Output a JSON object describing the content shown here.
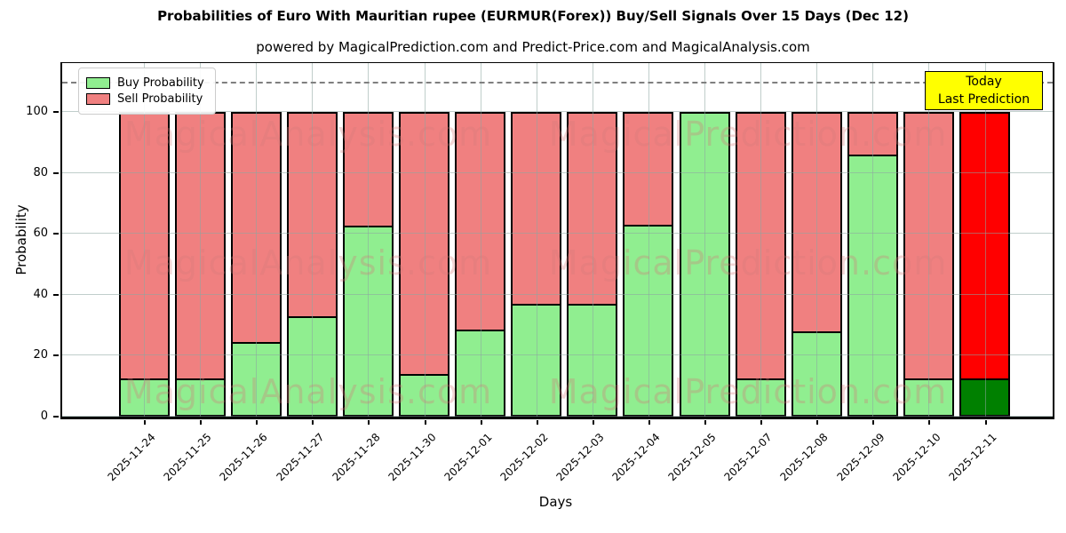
{
  "title": "Probabilities of Euro With Mauritian rupee (EURMUR(Forex)) Buy/Sell Signals Over 15 Days (Dec 12)",
  "subtitle": "powered by MagicalPrediction.com and Predict-Price.com and MagicalAnalysis.com",
  "watermarks": {
    "left_text": "MagicalAnalysis.com",
    "right_text": "MagicalPrediction.com"
  },
  "annotation_box": {
    "line1": "Today",
    "line2": "Last Prediction",
    "bg_color": "#ffff00"
  },
  "legend": {
    "items": [
      {
        "label": "Buy Probability",
        "color": "#90ee90"
      },
      {
        "label": "Sell Probability",
        "color": "#f08080"
      }
    ]
  },
  "chart_data": {
    "type": "bar",
    "stacked": true,
    "title": "Probabilities of Euro With Mauritian rupee (EURMUR(Forex)) Buy/Sell Signals Over 15 Days (Dec 12)",
    "xlabel": "Days",
    "ylabel": "Probability",
    "categories": [
      "2025-11-24",
      "2025-11-25",
      "2025-11-26",
      "2025-11-27",
      "2025-11-28",
      "2025-11-30",
      "2025-12-01",
      "2025-12-02",
      "2025-12-03",
      "2025-12-04",
      "2025-12-05",
      "2025-12-07",
      "2025-12-08",
      "2025-12-09",
      "2025-12-10",
      "2025-12-11"
    ],
    "series": [
      {
        "name": "Buy Probability",
        "color": "#90ee90",
        "values": [
          12,
          12,
          24,
          32.5,
          62,
          13.5,
          28,
          36.5,
          36.5,
          62.5,
          100,
          12,
          27.5,
          85.5,
          12,
          12
        ]
      },
      {
        "name": "Sell Probability",
        "color": "#f08080",
        "values": [
          88,
          88,
          76,
          67.5,
          38,
          86.5,
          72,
          63.5,
          63.5,
          37.5,
          0,
          88,
          72.5,
          14.5,
          88,
          88
        ]
      }
    ],
    "today_bar": {
      "index": 15,
      "buy_color": "#008000",
      "sell_color": "#ff0000"
    },
    "yticks": [
      0,
      20,
      40,
      60,
      80,
      100
    ],
    "ylim": [
      0,
      116
    ],
    "dashed_line_y": 110,
    "grid": true,
    "legend_position": "upper left",
    "bar_edge_color": "#000000"
  }
}
